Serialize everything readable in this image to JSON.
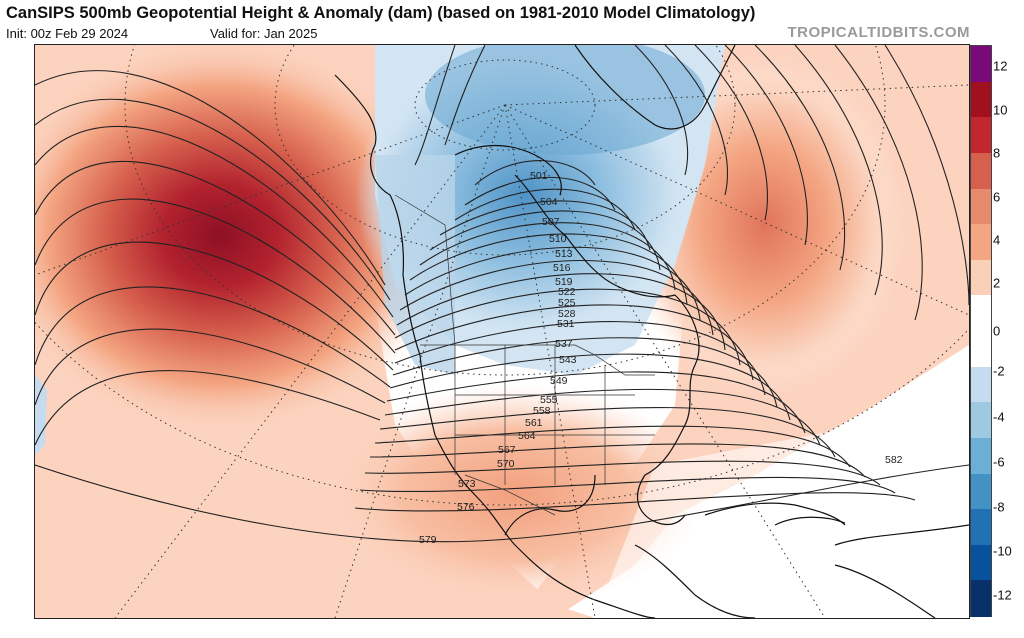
{
  "title": "CanSIPS 500mb Geopotential Height & Anomaly (dam) (based on 1981-2010 Model Climatology)",
  "init_text": "Init: 00z Feb 29 2024",
  "valid_text": "Valid for: Jan 2025",
  "brand": "TROPICALTIDBITS.COM",
  "colorbar": {
    "labels": [
      "12",
      "10",
      "8",
      "6",
      "4",
      "2",
      "0",
      "-2",
      "-4",
      "-6",
      "-8",
      "-10",
      "-12"
    ],
    "colors": [
      "#7a0a7a",
      "#a0101e",
      "#c1272d",
      "#d6604d",
      "#e58a6c",
      "#f4a582",
      "#fbd0b9",
      "#ffffff",
      "#ffffff",
      "#c6dbef",
      "#9ecae1",
      "#6baed6",
      "#4292c6",
      "#2171b5",
      "#08519c",
      "#08306b"
    ]
  },
  "contour_labels": [
    "501",
    "504",
    "507",
    "510",
    "513",
    "516",
    "519",
    "522",
    "525",
    "528",
    "531",
    "537",
    "543",
    "549",
    "555",
    "558",
    "561",
    "564",
    "567",
    "570",
    "573",
    "576",
    "579",
    "582"
  ],
  "map_layers": {
    "anomaly_fill": "blue-negative / red-positive shading",
    "height_contours": "black lines every 3 dam"
  }
}
